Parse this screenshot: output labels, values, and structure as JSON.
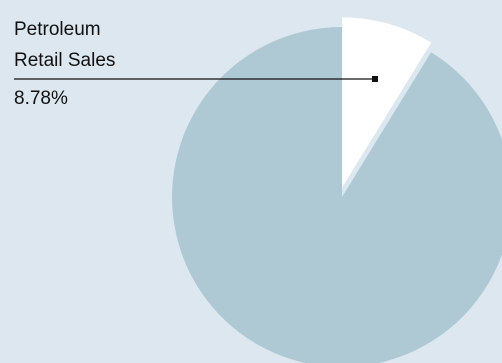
{
  "colors": {
    "background": "#dce7ef",
    "other_slice": "#aec9d4",
    "highlight_slice": "#ffffff",
    "leader_line": "#111111"
  },
  "chart_data": {
    "type": "pie",
    "title": "",
    "slices": [
      {
        "name": "Petroleum Retail Sales",
        "name_lines": [
          "Petroleum",
          "Retail Sales"
        ],
        "value": 8.78,
        "value_label": "8.78%",
        "exploded": true,
        "color": "#ffffff"
      },
      {
        "name": "",
        "value": 91.22,
        "exploded": false,
        "color": "#aec9d4"
      }
    ],
    "start_angle": "12 o'clock",
    "direction": "clockwise",
    "legend": "none"
  }
}
